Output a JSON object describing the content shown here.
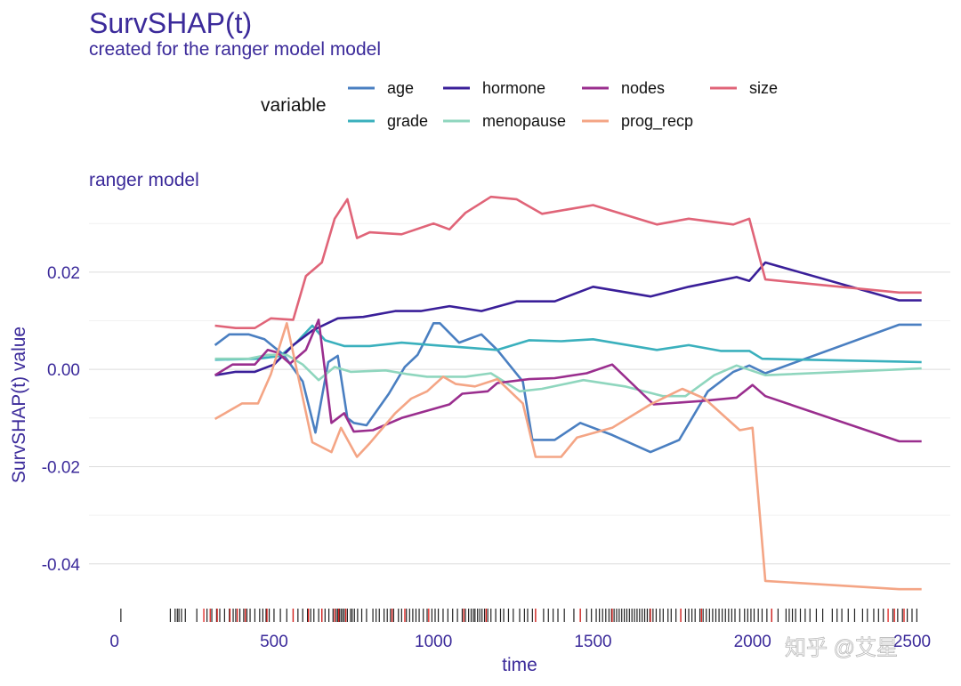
{
  "title": "SurvSHAP(t)",
  "subtitle": "created for the ranger model model",
  "facet_label": "ranger model",
  "watermark": "知乎 @艾星",
  "chart_data": {
    "type": "line",
    "title": "SurvSHAP(t)",
    "xlabel": "time",
    "ylabel": "SurvSHAP(t) value",
    "xlim": [
      -80,
      2620
    ],
    "ylim": [
      -0.047,
      0.037
    ],
    "x_ticks": [
      0,
      500,
      1000,
      1500,
      2000,
      2500
    ],
    "x_tick_labels": [
      "0",
      "500",
      "1000",
      "1500",
      "2000",
      "2500"
    ],
    "y_ticks": [
      -0.04,
      -0.02,
      0.0,
      0.02
    ],
    "y_tick_labels": [
      "-0.04",
      "-0.02",
      "0.00",
      "0.02"
    ],
    "grid": true,
    "legend_title": "variable",
    "legend_position": "top",
    "series": [
      {
        "name": "age",
        "color": "#4a7fc1",
        "points": [
          [
            315,
            0.005
          ],
          [
            360,
            0.0072
          ],
          [
            420,
            0.0072
          ],
          [
            470,
            0.0062
          ],
          [
            530,
            0.003
          ],
          [
            590,
            -0.0025
          ],
          [
            630,
            -0.013
          ],
          [
            670,
            0.0015
          ],
          [
            700,
            0.0028
          ],
          [
            730,
            -0.01
          ],
          [
            750,
            -0.011
          ],
          [
            790,
            -0.0115
          ],
          [
            860,
            -0.005
          ],
          [
            910,
            0.0005
          ],
          [
            950,
            0.003
          ],
          [
            970,
            0.0055
          ],
          [
            1000,
            0.0095
          ],
          [
            1020,
            0.0095
          ],
          [
            1080,
            0.0055
          ],
          [
            1150,
            0.0072
          ],
          [
            1200,
            0.004
          ],
          [
            1280,
            -0.0025
          ],
          [
            1310,
            -0.0145
          ],
          [
            1380,
            -0.0145
          ],
          [
            1460,
            -0.011
          ],
          [
            1560,
            -0.0135
          ],
          [
            1680,
            -0.017
          ],
          [
            1770,
            -0.0145
          ],
          [
            1860,
            -0.0045
          ],
          [
            1940,
            -0.0005
          ],
          [
            1990,
            0.0008
          ],
          [
            2040,
            -0.0008
          ],
          [
            2460,
            0.0092
          ],
          [
            2530,
            0.0092
          ]
        ]
      },
      {
        "name": "grade",
        "color": "#3ab0bd",
        "points": [
          [
            315,
            0.002
          ],
          [
            450,
            0.0022
          ],
          [
            520,
            0.0028
          ],
          [
            570,
            0.0055
          ],
          [
            620,
            0.009
          ],
          [
            660,
            0.006
          ],
          [
            720,
            0.0048
          ],
          [
            800,
            0.0048
          ],
          [
            900,
            0.0055
          ],
          [
            1000,
            0.005
          ],
          [
            1100,
            0.0045
          ],
          [
            1200,
            0.004
          ],
          [
            1300,
            0.006
          ],
          [
            1400,
            0.0058
          ],
          [
            1500,
            0.0062
          ],
          [
            1700,
            0.004
          ],
          [
            1800,
            0.005
          ],
          [
            1900,
            0.0038
          ],
          [
            1990,
            0.0038
          ],
          [
            2030,
            0.0022
          ],
          [
            2530,
            0.0015
          ]
        ]
      },
      {
        "name": "hormone",
        "color": "#3a1f99",
        "points": [
          [
            315,
            -0.0012
          ],
          [
            380,
            -0.0005
          ],
          [
            440,
            -0.0005
          ],
          [
            500,
            0.001
          ],
          [
            560,
            0.005
          ],
          [
            620,
            0.008
          ],
          [
            700,
            0.0105
          ],
          [
            780,
            0.0108
          ],
          [
            880,
            0.012
          ],
          [
            960,
            0.012
          ],
          [
            1050,
            0.013
          ],
          [
            1150,
            0.012
          ],
          [
            1260,
            0.014
          ],
          [
            1380,
            0.014
          ],
          [
            1500,
            0.017
          ],
          [
            1680,
            0.015
          ],
          [
            1800,
            0.017
          ],
          [
            1950,
            0.019
          ],
          [
            1990,
            0.0182
          ],
          [
            2040,
            0.022
          ],
          [
            2460,
            0.0142
          ],
          [
            2530,
            0.0142
          ]
        ]
      },
      {
        "name": "menopause",
        "color": "#8fd6be",
        "points": [
          [
            315,
            0.0022
          ],
          [
            420,
            0.0022
          ],
          [
            480,
            0.003
          ],
          [
            540,
            0.003
          ],
          [
            590,
            0.001
          ],
          [
            640,
            -0.0022
          ],
          [
            690,
            0.0005
          ],
          [
            740,
            -0.0005
          ],
          [
            850,
            -0.0002
          ],
          [
            920,
            -0.001
          ],
          [
            980,
            -0.0015
          ],
          [
            1100,
            -0.0015
          ],
          [
            1180,
            -0.0008
          ],
          [
            1270,
            -0.0045
          ],
          [
            1340,
            -0.004
          ],
          [
            1470,
            -0.0022
          ],
          [
            1600,
            -0.0035
          ],
          [
            1720,
            -0.0055
          ],
          [
            1790,
            -0.0055
          ],
          [
            1880,
            -0.0012
          ],
          [
            1950,
            0.0008
          ],
          [
            2040,
            -0.0012
          ],
          [
            2530,
            0.0002
          ]
        ]
      },
      {
        "name": "nodes",
        "color": "#9a2e8e",
        "points": [
          [
            315,
            -0.0012
          ],
          [
            370,
            0.001
          ],
          [
            440,
            0.001
          ],
          [
            480,
            0.004
          ],
          [
            510,
            0.0035
          ],
          [
            550,
            0.0012
          ],
          [
            600,
            0.004
          ],
          [
            640,
            0.0102
          ],
          [
            680,
            -0.011
          ],
          [
            720,
            -0.009
          ],
          [
            750,
            -0.0128
          ],
          [
            810,
            -0.0125
          ],
          [
            900,
            -0.01
          ],
          [
            980,
            -0.0085
          ],
          [
            1050,
            -0.0072
          ],
          [
            1090,
            -0.005
          ],
          [
            1170,
            -0.0045
          ],
          [
            1200,
            -0.0028
          ],
          [
            1300,
            -0.002
          ],
          [
            1380,
            -0.0018
          ],
          [
            1480,
            -0.0008
          ],
          [
            1560,
            0.001
          ],
          [
            1690,
            -0.0072
          ],
          [
            1840,
            -0.0065
          ],
          [
            1950,
            -0.0058
          ],
          [
            2000,
            -0.0032
          ],
          [
            2040,
            -0.0055
          ],
          [
            2460,
            -0.0148
          ],
          [
            2530,
            -0.0148
          ]
        ]
      },
      {
        "name": "prog_recp",
        "color": "#f4a585",
        "points": [
          [
            315,
            -0.0102
          ],
          [
            400,
            -0.007
          ],
          [
            450,
            -0.007
          ],
          [
            490,
            -0.001
          ],
          [
            540,
            0.0095
          ],
          [
            620,
            -0.015
          ],
          [
            680,
            -0.017
          ],
          [
            710,
            -0.012
          ],
          [
            760,
            -0.018
          ],
          [
            800,
            -0.0152
          ],
          [
            880,
            -0.009
          ],
          [
            930,
            -0.006
          ],
          [
            980,
            -0.0045
          ],
          [
            1030,
            -0.0015
          ],
          [
            1070,
            -0.003
          ],
          [
            1130,
            -0.0035
          ],
          [
            1200,
            -0.002
          ],
          [
            1280,
            -0.007
          ],
          [
            1320,
            -0.018
          ],
          [
            1400,
            -0.018
          ],
          [
            1450,
            -0.014
          ],
          [
            1560,
            -0.012
          ],
          [
            1680,
            -0.0072
          ],
          [
            1780,
            -0.004
          ],
          [
            1850,
            -0.006
          ],
          [
            1960,
            -0.0125
          ],
          [
            2000,
            -0.012
          ],
          [
            2040,
            -0.0435
          ],
          [
            2460,
            -0.0452
          ],
          [
            2530,
            -0.0452
          ]
        ]
      },
      {
        "name": "size",
        "color": "#e06478",
        "points": [
          [
            315,
            0.009
          ],
          [
            380,
            0.0085
          ],
          [
            440,
            0.0085
          ],
          [
            490,
            0.0105
          ],
          [
            560,
            0.0102
          ],
          [
            600,
            0.0192
          ],
          [
            650,
            0.022
          ],
          [
            690,
            0.031
          ],
          [
            730,
            0.035
          ],
          [
            760,
            0.027
          ],
          [
            800,
            0.0282
          ],
          [
            900,
            0.0278
          ],
          [
            1000,
            0.03
          ],
          [
            1050,
            0.0288
          ],
          [
            1100,
            0.0322
          ],
          [
            1180,
            0.0355
          ],
          [
            1260,
            0.035
          ],
          [
            1340,
            0.032
          ],
          [
            1500,
            0.0338
          ],
          [
            1700,
            0.0298
          ],
          [
            1800,
            0.031
          ],
          [
            1940,
            0.0298
          ],
          [
            1990,
            0.031
          ],
          [
            2040,
            0.0185
          ],
          [
            2460,
            0.0158
          ],
          [
            2530,
            0.0158
          ]
        ]
      }
    ],
    "rug": {
      "black": [
        20,
        175,
        190,
        197,
        202,
        210,
        222,
        258,
        290,
        305,
        320,
        330,
        345,
        360,
        372,
        380,
        393,
        405,
        415,
        425,
        440,
        455,
        465,
        475,
        485,
        500,
        520,
        540,
        560,
        575,
        590,
        605,
        615,
        625,
        640,
        650,
        660,
        672,
        685,
        695,
        700,
        705,
        710,
        715,
        720,
        730,
        740,
        745,
        752,
        762,
        775,
        790,
        810,
        820,
        830,
        845,
        855,
        865,
        875,
        890,
        900,
        915,
        925,
        935,
        945,
        955,
        968,
        980,
        995,
        1005,
        1015,
        1030,
        1045,
        1060,
        1075,
        1090,
        1100,
        1110,
        1118,
        1125,
        1130,
        1138,
        1145,
        1152,
        1160,
        1170,
        1180,
        1195,
        1210,
        1220,
        1235,
        1250,
        1270,
        1285,
        1295,
        1310,
        1320,
        1345,
        1360,
        1375,
        1390,
        1410,
        1440,
        1460,
        1480,
        1495,
        1510,
        1520,
        1530,
        1540,
        1550,
        1558,
        1566,
        1574,
        1582,
        1590,
        1598,
        1606,
        1614,
        1622,
        1630,
        1638,
        1646,
        1654,
        1662,
        1670,
        1678,
        1688,
        1698,
        1710,
        1720,
        1735,
        1745,
        1760,
        1775,
        1790,
        1800,
        1810,
        1820,
        1835,
        1845,
        1855,
        1865,
        1875,
        1885,
        1895,
        1905,
        1915,
        1925,
        1935,
        1945,
        1960,
        1975,
        1985,
        1995,
        2005,
        2018,
        2030,
        2045,
        2060,
        2080,
        2105,
        2115,
        2125,
        2135,
        2150,
        2165,
        2180,
        2200,
        2220,
        2250,
        2265,
        2280,
        2300,
        2320,
        2345,
        2360,
        2380,
        2395,
        2410,
        2440,
        2455,
        2470,
        2485,
        2500,
        2515
      ],
      "red": [
        280,
        300,
        322,
        362,
        385,
        410,
        478,
        560,
        608,
        650,
        690,
        703,
        725,
        870,
        910,
        985,
        1095,
        1165,
        1320,
        1460,
        1560,
        1680,
        1775,
        1840,
        2060,
        2425,
        2445,
        2475
      ]
    }
  }
}
